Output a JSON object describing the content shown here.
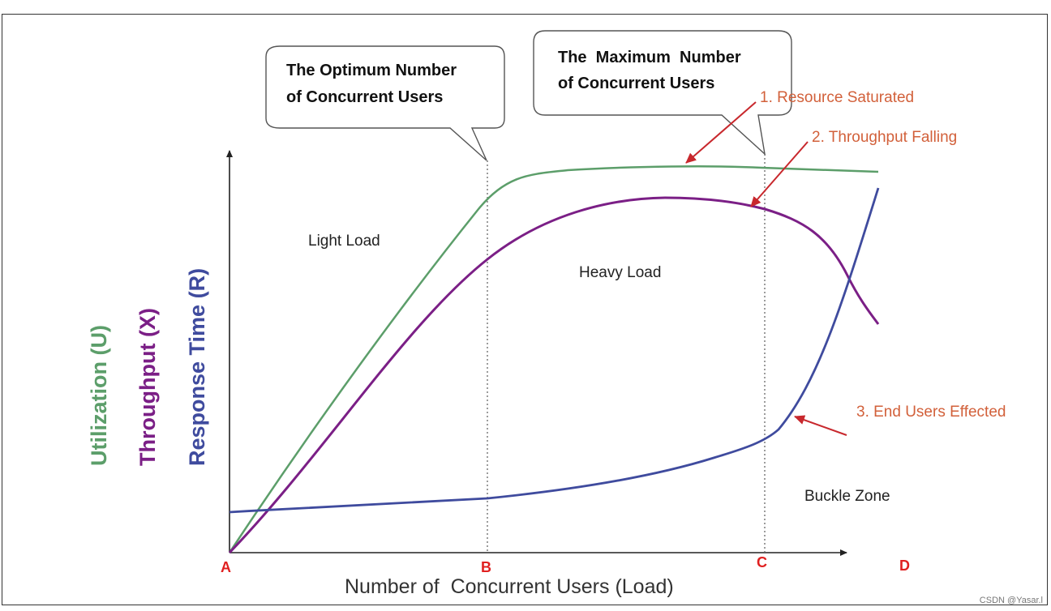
{
  "chart_data": {
    "type": "line",
    "xlabel": "Number of  Concurrent Users (Load)",
    "ylabels": [
      {
        "text": "Utilization (U)",
        "color": "#5c9e6a"
      },
      {
        "text": "Throughput (X)",
        "color": "#7b1f86"
      },
      {
        "text": "Response Time (R)",
        "color": "#3f4b9e"
      }
    ],
    "x_markers": [
      "A",
      "B",
      "C",
      "D"
    ],
    "x_marker_color": "#e02020",
    "series": [
      {
        "name": "Utilization (U)",
        "color": "#5c9e6a"
      },
      {
        "name": "Throughput (X)",
        "color": "#7b1f86"
      },
      {
        "name": "Response Time (R)",
        "color": "#3f4b9e"
      }
    ],
    "regions": [
      "Light Load",
      "Heavy Load",
      "Buckle Zone"
    ],
    "callouts": {
      "optimum": "The Optimum Number of Concurrent Users",
      "optimum_lines": [
        "The Optimum Number",
        "of Concurrent Users"
      ],
      "maximum": "The  Maximum  Number of Concurrent Users",
      "maximum_lines": [
        "The  Maximum  Number",
        "of Concurrent Users"
      ]
    },
    "annotations": [
      "1. Resource Saturated",
      "2. Throughput Falling",
      "3. End Users Effected"
    ],
    "annotation_color": "#d2603a",
    "arrow_color": "#c8282d"
  },
  "watermark": "CSDN @Yasar.l"
}
